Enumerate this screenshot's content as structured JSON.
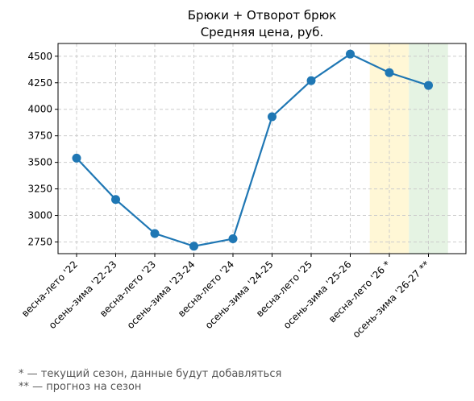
{
  "chart_data": {
    "type": "line",
    "title": "Брюки + Отворот брюк",
    "subtitle": "Средняя цена, руб.",
    "xlabel": "",
    "ylabel": "",
    "categories": [
      "весна-лето '22",
      "осень-зима '22-23",
      "весна-лето '23",
      "осень-зима '23-24",
      "весна-лето '24",
      "осень-зима '24-25",
      "весна-лето '25",
      "осень-зима '25-26",
      "весна-лето '26 *",
      "осень-зима '26-27 **"
    ],
    "series": [
      {
        "values": [
          3540,
          3150,
          2830,
          2710,
          2780,
          3930,
          4270,
          4520,
          4345,
          4225
        ],
        "color": "#1f77b4"
      }
    ],
    "ylim": [
      2640,
      4620
    ],
    "yticks": [
      2750,
      3000,
      3250,
      3500,
      3750,
      4000,
      4250,
      4500
    ],
    "grid": true,
    "highlight_bands": [
      {
        "category_index": 8,
        "color": "#fff7d6"
      },
      {
        "category_index": 9,
        "color": "#e5f3e3"
      }
    ]
  },
  "footnotes": {
    "current": "* — текущий сезон, данные будут добавляться",
    "forecast": "** — прогноз на сезон"
  }
}
